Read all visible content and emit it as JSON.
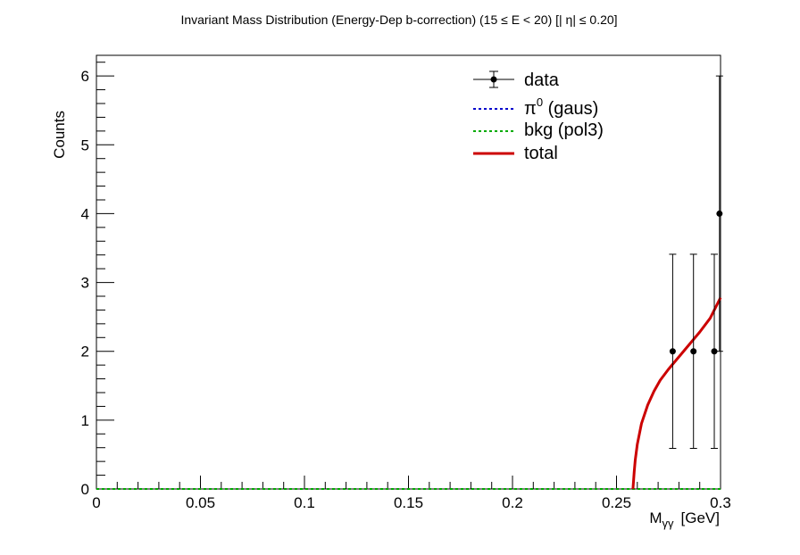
{
  "chart_data": {
    "type": "scatter",
    "title": "Invariant Mass Distribution (Energy-Dep b-correction)   (15      ≤ E < 20)   [| η| ≤ 0.20]",
    "xlabel_main": "M",
    "xlabel_sub": "γγ",
    "xlabel_unit": "[GeV]",
    "ylabel": "Counts",
    "xlim": [
      0,
      0.3
    ],
    "ylim": [
      0,
      6.3
    ],
    "x_ticks": [
      0,
      0.05,
      0.1,
      0.15,
      0.2,
      0.25,
      0.3
    ],
    "x_tick_labels": [
      "0",
      "0.05",
      "0.1",
      "0.15",
      "0.2",
      "0.25",
      "0.3"
    ],
    "y_ticks": [
      0,
      1,
      2,
      3,
      4,
      5,
      6
    ],
    "y_tick_labels": [
      "0",
      "1",
      "2",
      "3",
      "4",
      "5",
      "6"
    ],
    "grid": false,
    "legend_position": "top-right",
    "series": [
      {
        "name": "data",
        "kind": "points-with-errors",
        "color": "#000000",
        "x": [
          0.277,
          0.287,
          0.297,
          0.2995
        ],
        "y": [
          2,
          2,
          2,
          4
        ],
        "yerr_low": [
          1.41,
          1.41,
          1.41,
          2
        ],
        "yerr_high": [
          1.41,
          1.41,
          1.41,
          2
        ]
      },
      {
        "name": "π⁰ (gaus)",
        "label_main": "π",
        "label_sup": "0",
        "label_rest": " (gaus)",
        "kind": "dashed-line",
        "color": "#0000cc",
        "x": [
          0,
          0.3
        ],
        "y": [
          0,
          0
        ]
      },
      {
        "name": "bkg (pol3)",
        "kind": "dashed-line",
        "color": "#00aa00",
        "x": [
          0,
          0.3
        ],
        "y": [
          0,
          0
        ]
      },
      {
        "name": "total",
        "kind": "solid-line",
        "color": "#cc0000",
        "x": [
          0.2579,
          0.2585,
          0.259,
          0.26,
          0.262,
          0.265,
          0.268,
          0.271,
          0.275,
          0.28,
          0.285,
          0.29,
          0.295,
          0.3
        ],
        "y": [
          0.0,
          0.25,
          0.42,
          0.65,
          0.95,
          1.22,
          1.42,
          1.58,
          1.74,
          1.92,
          2.1,
          2.28,
          2.48,
          2.78
        ]
      }
    ]
  }
}
